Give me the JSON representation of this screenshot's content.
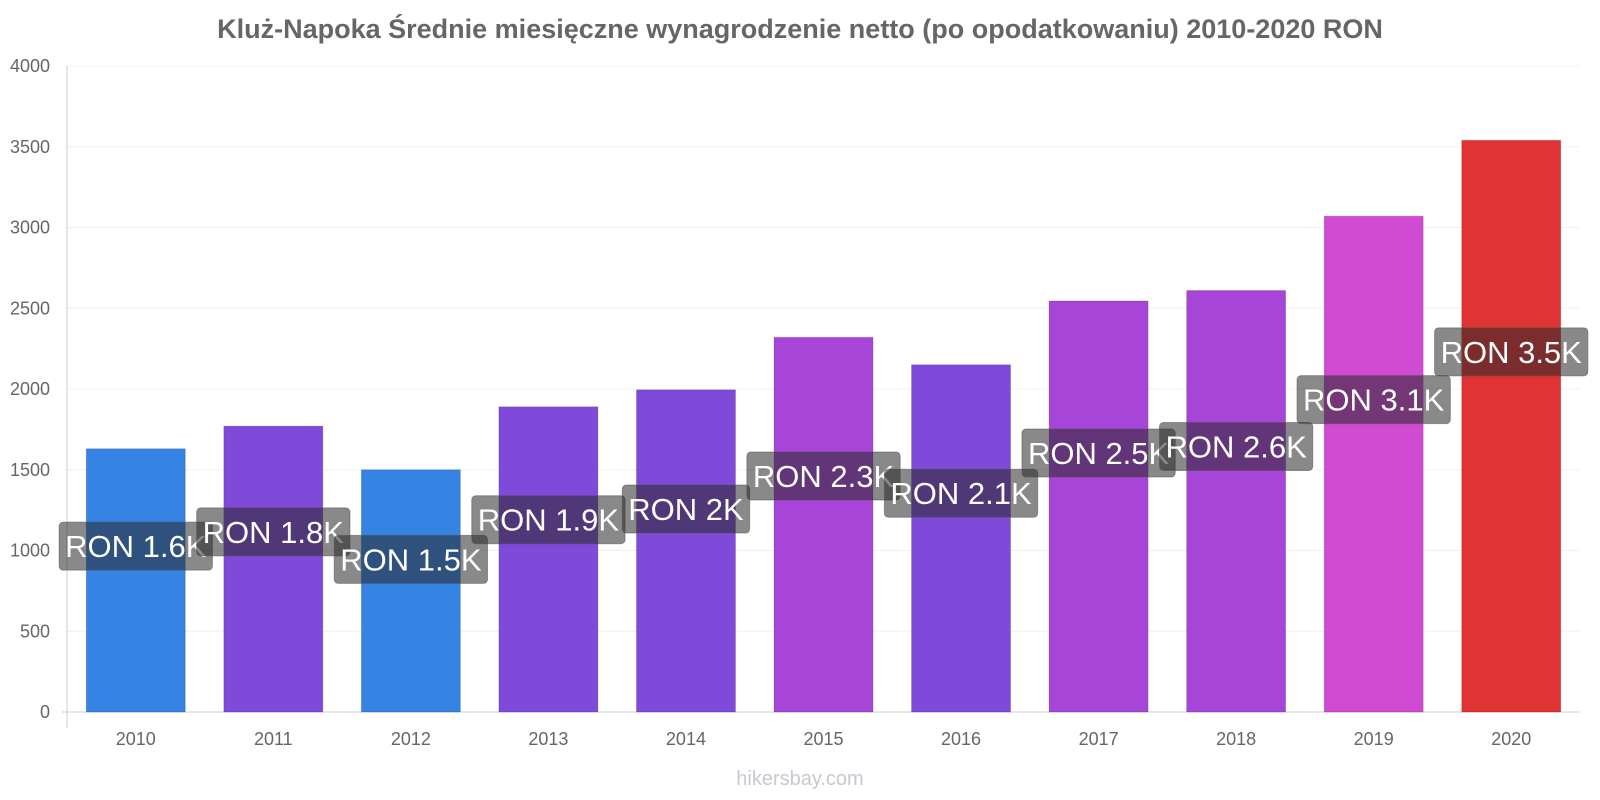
{
  "chart_data": {
    "type": "bar",
    "title": "Kluż-Napoka Średnie miesięczne wynagrodzenie netto (po opodatkowaniu) 2010-2020 RON",
    "xlabel": "",
    "ylabel": "",
    "ylim": [
      0,
      4000
    ],
    "yticks": [
      0,
      500,
      1000,
      1500,
      2000,
      2500,
      3000,
      3500,
      4000
    ],
    "grid": true,
    "legend": "none",
    "categories": [
      "2010",
      "2011",
      "2012",
      "2013",
      "2014",
      "2015",
      "2016",
      "2017",
      "2018",
      "2019",
      "2020"
    ],
    "values": [
      1630,
      1770,
      1500,
      1890,
      1995,
      2320,
      2150,
      2545,
      2610,
      3070,
      3540
    ],
    "data_labels": [
      "RON 1.6K",
      "RON 1.8K",
      "RON 1.5K",
      "RON 1.9K",
      "RON 2K",
      "RON 2.3K",
      "RON 2.1K",
      "RON 2.5K",
      "RON 2.6K",
      "RON 3.1K",
      "RON 3.5K"
    ],
    "colors": [
      "#3584e4",
      "#7f4ad9",
      "#3584e4",
      "#7f4ad9",
      "#7f4ad9",
      "#a745d9",
      "#7f4ad9",
      "#a745d9",
      "#a745d9",
      "#d14ad2",
      "#e03333"
    ]
  },
  "watermark": "hikersbay.com"
}
